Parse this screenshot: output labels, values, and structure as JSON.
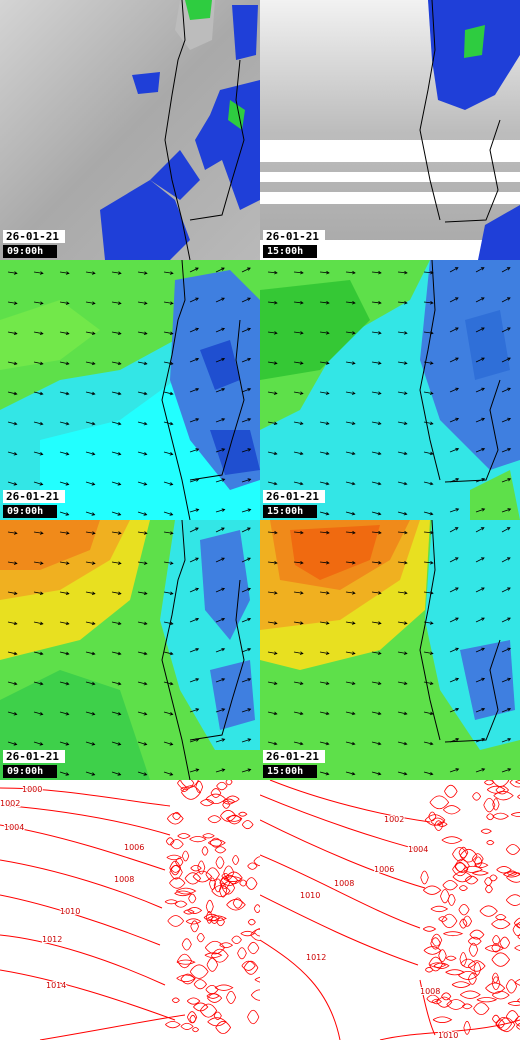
{
  "panels": [
    {
      "id": "precip-0900",
      "stamp": {
        "date": "26-01-21",
        "time": "09:00h"
      }
    },
    {
      "id": "precip-1500",
      "stamp": {
        "date": "26-01-21",
        "time": "15:00h"
      }
    },
    {
      "id": "wind10m-0900",
      "stamp": {
        "date": "26-01-21",
        "time": "09:00h"
      }
    },
    {
      "id": "wind10m-1500",
      "stamp": {
        "date": "26-01-21",
        "time": "15:00h"
      }
    },
    {
      "id": "wind850-0900",
      "stamp": {
        "date": "26-01-21",
        "time": "09:00h"
      }
    },
    {
      "id": "wind850-1500",
      "stamp": {
        "date": "26-01-21",
        "time": "15:00h"
      }
    },
    {
      "id": "pressure-0900",
      "isobars": [
        {
          "label": "1000"
        },
        {
          "label": "1002"
        },
        {
          "label": "1004"
        },
        {
          "label": "1006"
        },
        {
          "label": "1008"
        },
        {
          "label": "1010"
        },
        {
          "label": "1012"
        },
        {
          "label": "1014"
        }
      ]
    },
    {
      "id": "pressure-1500",
      "isobars": [
        {
          "label": "1002"
        },
        {
          "label": "1004"
        },
        {
          "label": "1006"
        },
        {
          "label": "1008"
        },
        {
          "label": "1010"
        },
        {
          "label": "1012"
        },
        {
          "label": "1008"
        },
        {
          "label": "1010"
        }
      ]
    }
  ],
  "colors": {
    "land_outline": "#000000",
    "isobar": "#ff0000",
    "cloud_gray": "#b8b8b8",
    "precip_blue": "#1f3fd8",
    "precip_green": "#2ecc40",
    "wind_green": "#5ee04a",
    "wind_cyan": "#33e6e6",
    "wind_blue": "#3f7fe0",
    "wind_orange": "#f08a1a",
    "wind_yellow": "#e8e020"
  },
  "icons": {
    "wind_vector": "arrow-icon"
  }
}
